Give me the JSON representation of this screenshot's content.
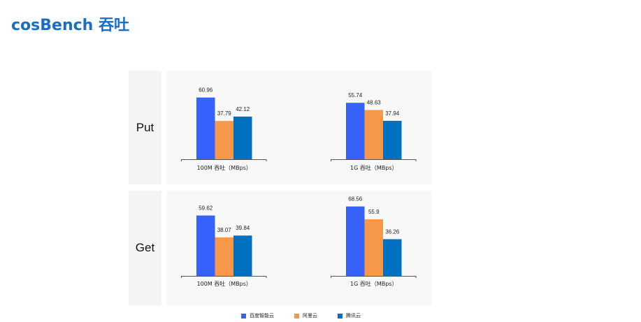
{
  "title": "cosBench 吞吐",
  "colors": {
    "百度智能云": "#3662fb",
    "阿里云": "#f7974a",
    "腾讯云": "#0070c0"
  },
  "legend": [
    "百度智能云",
    "阿里云",
    "腾讯云"
  ],
  "rows": [
    {
      "label": "Put"
    },
    {
      "label": "Get"
    }
  ],
  "chart_data": [
    {
      "type": "bar",
      "row": "Put",
      "xlabel": "100M 吞吐（MBps）",
      "categories": [
        "百度智能云",
        "阿里云",
        "腾讯云"
      ],
      "values": [
        60.96,
        37.79,
        42.12
      ],
      "data_labels": [
        "60.96",
        "37.79",
        "42.12"
      ]
    },
    {
      "type": "bar",
      "row": "Put",
      "xlabel": "1G 吞吐（MBps）",
      "categories": [
        "百度智能云",
        "阿里云",
        "腾讯云"
      ],
      "values": [
        55.74,
        48.63,
        37.94
      ],
      "data_labels": [
        "55.74",
        "48.63",
        "37.94"
      ]
    },
    {
      "type": "bar",
      "row": "Get",
      "xlabel": "100M 吞吐（MBps）",
      "categories": [
        "百度智能云",
        "阿里云",
        "腾讯云"
      ],
      "values": [
        59.62,
        38.07,
        39.84
      ],
      "data_labels": [
        "59.62",
        "38.07",
        "39.84"
      ]
    },
    {
      "type": "bar",
      "row": "Get",
      "xlabel": "1G 吞吐（MBps）",
      "categories": [
        "百度智能云",
        "阿里云",
        "腾讯云"
      ],
      "values": [
        68.56,
        55.9,
        36.26
      ],
      "data_labels": [
        "68.56",
        "55.9",
        "36.26"
      ]
    }
  ]
}
